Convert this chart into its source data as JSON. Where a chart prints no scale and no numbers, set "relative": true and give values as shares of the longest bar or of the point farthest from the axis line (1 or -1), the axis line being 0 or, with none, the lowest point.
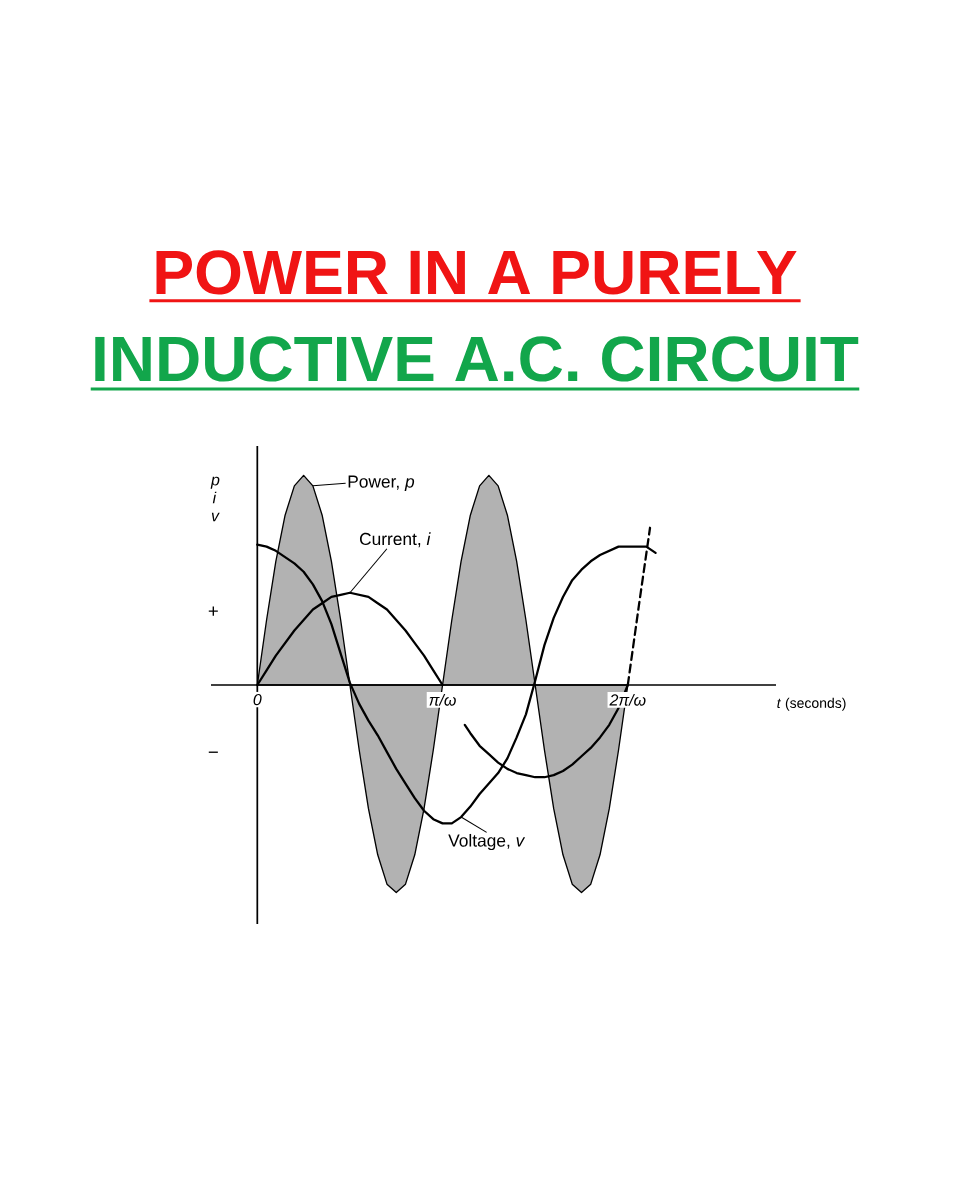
{
  "chart_data": {
    "type": "line",
    "title": "POWER IN A PURELY",
    "subtitle": "INDUCTIVE A.C. CIRCUIT",
    "xlabel": "*t* (seconds)",
    "ylabel": "p i v",
    "relative": true,
    "tick_labels": "x",
    "xlim": [
      -0.25,
      2.8
    ],
    "xticks": [
      0,
      {
        "value": 1,
        "label": "π/ω"
      },
      {
        "value": 2,
        "label": "2π/ω"
      }
    ],
    "annotations": [
      "+",
      "−"
    ],
    "series": [
      {
        "name": "Power, *p*",
        "type": "area",
        "color": "#000000",
        "x": [
          0,
          0.05,
          0.1,
          0.15,
          0.2,
          0.25,
          0.3,
          0.35,
          0.4,
          0.45,
          0.5,
          0.55,
          0.6,
          0.65,
          0.7,
          0.75,
          0.8,
          0.85,
          0.9,
          0.95,
          1,
          1.05,
          1.1,
          1.15,
          1.2,
          1.25,
          1.3,
          1.35,
          1.4,
          1.45,
          1.5,
          1.55,
          1.6,
          1.65,
          1.7,
          1.75,
          1.8,
          1.85,
          1.9,
          1.95,
          2
        ],
        "values": [
          0,
          0.31,
          0.59,
          0.81,
          0.95,
          1,
          0.95,
          0.81,
          0.59,
          0.31,
          0,
          -0.31,
          -0.59,
          -0.81,
          -0.95,
          -0.99,
          -0.95,
          -0.81,
          -0.59,
          -0.31,
          0,
          0.31,
          0.59,
          0.81,
          0.95,
          1,
          0.95,
          0.81,
          0.59,
          0.31,
          0,
          -0.31,
          -0.59,
          -0.81,
          -0.95,
          -0.99,
          -0.95,
          -0.81,
          -0.59,
          -0.31,
          0
        ]
      },
      {
        "type": "line",
        "line_style": "dashed",
        "color": "#000000",
        "x": [
          2,
          2.06,
          2.12
        ],
        "values": [
          0,
          0.38,
          0.75
        ]
      },
      {
        "name": "Current, *i*",
        "color": "#000000",
        "x": [
          0,
          0.05,
          0.1,
          0.15,
          0.2,
          0.25,
          0.3,
          0.35,
          0.4,
          0.45,
          0.5,
          0.55,
          0.6,
          0.65,
          0.7,
          0.75,
          0.8,
          0.85,
          0.9,
          0.95,
          1,
          1.05,
          1.12,
          1.15,
          1.2,
          1.25,
          1.3,
          1.35,
          1.4,
          1.45,
          1.5,
          1.55,
          1.6,
          1.65,
          1.7,
          1.75,
          1.8,
          1.85,
          1.9,
          1.95,
          2
        ],
        "values": [
          0,
          0.07,
          0.14,
          0.2,
          0.26,
          0.31,
          0.36,
          0.39,
          0.42,
          0.43,
          0.44,
          0.43,
          0.42,
          0.39,
          0.36,
          0.31,
          0.26,
          0.2,
          0.14,
          0.07,
          0,
          null,
          -0.19,
          -0.23,
          -0.29,
          -0.33,
          -0.37,
          -0.4,
          -0.42,
          -0.43,
          -0.44,
          -0.44,
          -0.43,
          -0.41,
          -0.38,
          -0.34,
          -0.3,
          -0.25,
          -0.19,
          -0.11,
          0
        ]
      },
      {
        "name": "Voltage, *v*",
        "color": "#000000",
        "x": [
          0,
          0.05,
          0.1,
          0.15,
          0.2,
          0.25,
          0.3,
          0.35,
          0.4,
          0.45,
          0.5,
          0.55,
          0.6,
          0.65,
          0.7,
          0.75,
          0.8,
          0.85,
          0.9,
          0.95,
          1,
          1.05,
          1.1,
          1.15,
          1.2,
          1.25,
          1.3,
          1.35,
          1.4,
          1.45,
          1.5,
          1.55,
          1.6,
          1.65,
          1.7,
          1.75,
          1.8,
          1.85,
          1.9,
          1.95,
          2,
          2.05,
          2.1,
          2.15
        ],
        "values": [
          0.67,
          0.66,
          0.64,
          0.61,
          0.58,
          0.54,
          0.48,
          0.4,
          0.29,
          0.15,
          0.01,
          -0.09,
          -0.17,
          -0.24,
          -0.32,
          -0.4,
          -0.47,
          -0.54,
          -0.6,
          -0.64,
          -0.66,
          -0.66,
          -0.63,
          -0.58,
          -0.52,
          -0.47,
          -0.42,
          -0.35,
          -0.25,
          -0.14,
          0.02,
          0.19,
          0.32,
          0.42,
          0.5,
          0.55,
          0.59,
          0.62,
          0.64,
          0.66,
          0.66,
          0.66,
          0.66,
          0.63
        ]
      }
    ]
  }
}
